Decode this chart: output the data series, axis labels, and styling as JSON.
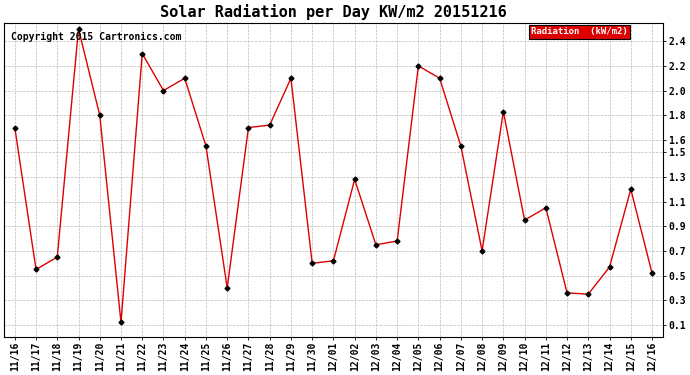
{
  "title": "Solar Radiation per Day KW/m2 20151216",
  "copyright_text": "Copyright 2015 Cartronics.com",
  "legend_label": "Radiation  (kW/m2)",
  "x_labels": [
    "11/16",
    "11/17",
    "11/18",
    "11/19",
    "11/20",
    "11/21",
    "11/22",
    "11/23",
    "11/24",
    "11/25",
    "11/26",
    "11/27",
    "11/28",
    "11/29",
    "11/30",
    "12/01",
    "12/02",
    "12/03",
    "12/04",
    "12/05",
    "12/06",
    "12/07",
    "12/08",
    "12/09",
    "12/10",
    "12/11",
    "12/12",
    "12/13",
    "12/14",
    "12/15",
    "12/16"
  ],
  "y_values": [
    1.7,
    0.55,
    0.65,
    2.5,
    1.8,
    0.12,
    2.3,
    2.0,
    2.1,
    1.55,
    0.4,
    1.7,
    1.72,
    2.1,
    0.6,
    0.62,
    1.28,
    0.75,
    0.78,
    2.2,
    2.1,
    1.55,
    0.7,
    1.83,
    0.95,
    1.05,
    0.36,
    0.35,
    0.57,
    1.2,
    0.52
  ],
  "line_color": "#dd0000",
  "marker_color": "#000000",
  "background_color": "#ffffff",
  "plot_bg_color": "#ffffff",
  "grid_color": "#bbbbbb",
  "legend_bg": "#dd0000",
  "legend_text_color": "#ffffff",
  "y_min": 0.0,
  "y_max": 2.5,
  "y_ticks": [
    0.1,
    0.3,
    0.5,
    0.7,
    0.9,
    1.1,
    1.3,
    1.5,
    1.6,
    1.8,
    2.0,
    2.2,
    2.4
  ],
  "title_fontsize": 11,
  "tick_fontsize": 7,
  "copyright_fontsize": 7
}
